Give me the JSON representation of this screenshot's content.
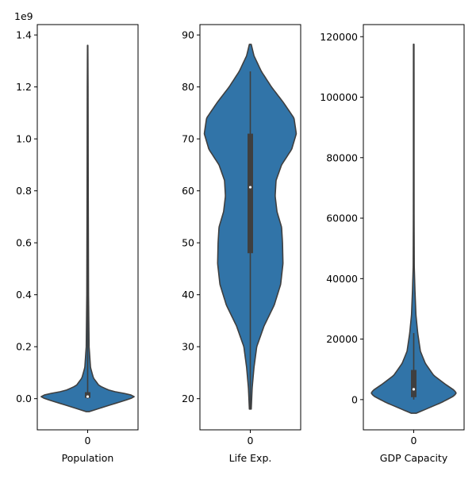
{
  "colors": {
    "violin_fill": "#3174a8",
    "violin_edge": "#3f3f3f",
    "box": "#3f3f3f",
    "median": "#ffffff",
    "frame": "#000000"
  },
  "chart_data": [
    {
      "type": "violin",
      "category_tick": "0",
      "xlabel": "Population",
      "offset_text": "1e9",
      "ylim": [
        -0.12,
        1.44
      ],
      "yticks": [
        0.0,
        0.2,
        0.4,
        0.6,
        0.8,
        1.0,
        1.2,
        1.4
      ],
      "ytick_labels": [
        "0.0",
        "0.2",
        "0.4",
        "0.6",
        "0.8",
        "1.0",
        "1.2",
        "1.4"
      ],
      "whisker": [
        0.0,
        1.36
      ],
      "box": [
        0.003,
        0.025
      ],
      "median": 0.008,
      "density_profile": [
        [
          -0.05,
          0.03
        ],
        [
          -0.04,
          0.2
        ],
        [
          -0.02,
          0.55
        ],
        [
          0.0,
          0.9
        ],
        [
          0.01,
          1.0
        ],
        [
          0.02,
          0.78
        ],
        [
          0.03,
          0.48
        ],
        [
          0.05,
          0.24
        ],
        [
          0.08,
          0.12
        ],
        [
          0.12,
          0.06
        ],
        [
          0.2,
          0.03
        ],
        [
          0.4,
          0.018
        ],
        [
          0.8,
          0.012
        ],
        [
          1.2,
          0.008
        ],
        [
          1.36,
          0.004
        ]
      ]
    },
    {
      "type": "violin",
      "category_tick": "0",
      "xlabel": "Life Exp.",
      "offset_text": "",
      "ylim": [
        14,
        92
      ],
      "yticks": [
        20,
        30,
        40,
        50,
        60,
        70,
        80,
        90
      ],
      "ytick_labels": [
        "20",
        "30",
        "40",
        "50",
        "60",
        "70",
        "80",
        "90"
      ],
      "whisker": [
        18,
        83
      ],
      "box": [
        48,
        71
      ],
      "median": 60.7,
      "density_profile": [
        [
          18,
          0.02
        ],
        [
          22,
          0.04
        ],
        [
          26,
          0.08
        ],
        [
          30,
          0.14
        ],
        [
          34,
          0.3
        ],
        [
          38,
          0.52
        ],
        [
          42,
          0.66
        ],
        [
          46,
          0.71
        ],
        [
          50,
          0.7
        ],
        [
          53,
          0.68
        ],
        [
          56,
          0.58
        ],
        [
          59,
          0.54
        ],
        [
          62,
          0.56
        ],
        [
          65,
          0.68
        ],
        [
          68,
          0.9
        ],
        [
          71,
          1.0
        ],
        [
          74,
          0.95
        ],
        [
          77,
          0.72
        ],
        [
          80,
          0.46
        ],
        [
          83,
          0.24
        ],
        [
          86,
          0.08
        ],
        [
          88.2,
          0.02
        ]
      ]
    },
    {
      "type": "violin",
      "category_tick": "0",
      "xlabel": "GDP Capacity",
      "offset_text": "",
      "ylim": [
        -10000,
        124000
      ],
      "yticks": [
        0,
        20000,
        40000,
        60000,
        80000,
        100000,
        120000
      ],
      "ytick_labels": [
        "0",
        "20000",
        "40000",
        "60000",
        "80000",
        "100000",
        "120000"
      ],
      "whisker": [
        0,
        22000
      ],
      "box": [
        800,
        9800
      ],
      "median": 3400,
      "density_profile": [
        [
          -4500,
          0.06
        ],
        [
          -3000,
          0.3
        ],
        [
          -1000,
          0.62
        ],
        [
          1000,
          0.88
        ],
        [
          2000,
          0.96
        ],
        [
          3000,
          0.92
        ],
        [
          5000,
          0.72
        ],
        [
          8000,
          0.45
        ],
        [
          12000,
          0.26
        ],
        [
          16000,
          0.15
        ],
        [
          22000,
          0.09
        ],
        [
          28000,
          0.05
        ],
        [
          36000,
          0.028
        ],
        [
          44000,
          0.012
        ],
        [
          60000,
          0.008
        ],
        [
          80000,
          0.007
        ],
        [
          100000,
          0.007
        ],
        [
          117500,
          0.006
        ]
      ]
    }
  ]
}
